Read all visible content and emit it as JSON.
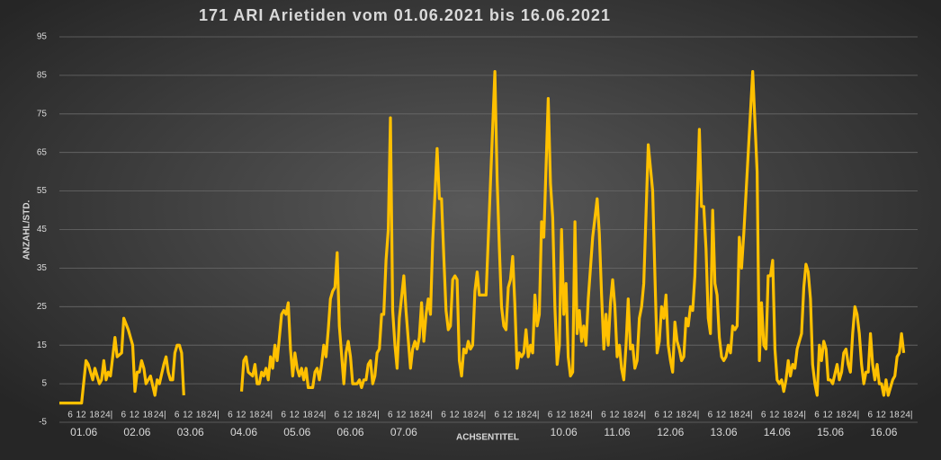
{
  "chart_data": {
    "type": "line",
    "title": "171 ARI Arietiden vom 01.06.2021 bis 16.06.2021",
    "ylabel": "ANZAHL/STD.",
    "xlabel": "ACHSENTITEL",
    "color": "#ffc000",
    "grid": true,
    "xlim": [
      0,
      384
    ],
    "ylim": [
      -5,
      95
    ],
    "yticks": [
      -5,
      5,
      15,
      25,
      35,
      45,
      55,
      65,
      75,
      85,
      95
    ],
    "xticks": [
      {
        "value": 6,
        "label": "6"
      },
      {
        "value": 12,
        "label": "12"
      },
      {
        "value": 18,
        "label": "18"
      },
      {
        "value": 24,
        "label": "24|"
      },
      {
        "value": 30,
        "label": "6"
      },
      {
        "value": 36,
        "label": "12"
      },
      {
        "value": 42,
        "label": "18"
      },
      {
        "value": 48,
        "label": "24|"
      },
      {
        "value": 54,
        "label": "6"
      },
      {
        "value": 60,
        "label": "12"
      },
      {
        "value": 66,
        "label": "18"
      },
      {
        "value": 72,
        "label": "24|"
      },
      {
        "value": 78,
        "label": "6"
      },
      {
        "value": 84,
        "label": "12"
      },
      {
        "value": 90,
        "label": "18"
      },
      {
        "value": 96,
        "label": "24|"
      },
      {
        "value": 102,
        "label": "6"
      },
      {
        "value": 108,
        "label": "12"
      },
      {
        "value": 114,
        "label": "18"
      },
      {
        "value": 120,
        "label": "24|"
      },
      {
        "value": 126,
        "label": "6"
      },
      {
        "value": 132,
        "label": "12"
      },
      {
        "value": 138,
        "label": "18"
      },
      {
        "value": 144,
        "label": "24|"
      },
      {
        "value": 150,
        "label": "6"
      },
      {
        "value": 156,
        "label": "12"
      },
      {
        "value": 162,
        "label": "18"
      },
      {
        "value": 168,
        "label": "24|"
      },
      {
        "value": 174,
        "label": "6"
      },
      {
        "value": 180,
        "label": "12"
      },
      {
        "value": 186,
        "label": "18"
      },
      {
        "value": 192,
        "label": "24|"
      },
      {
        "value": 198,
        "label": "6"
      },
      {
        "value": 204,
        "label": "12"
      },
      {
        "value": 210,
        "label": "18"
      },
      {
        "value": 216,
        "label": "24|"
      },
      {
        "value": 222,
        "label": "6"
      },
      {
        "value": 228,
        "label": "12"
      },
      {
        "value": 234,
        "label": "18"
      },
      {
        "value": 240,
        "label": "24|"
      },
      {
        "value": 246,
        "label": "6"
      },
      {
        "value": 252,
        "label": "12"
      },
      {
        "value": 258,
        "label": "18"
      },
      {
        "value": 264,
        "label": "24|"
      },
      {
        "value": 270,
        "label": "6"
      },
      {
        "value": 276,
        "label": "12"
      },
      {
        "value": 282,
        "label": "18"
      },
      {
        "value": 288,
        "label": "24|"
      },
      {
        "value": 294,
        "label": "6"
      },
      {
        "value": 300,
        "label": "12"
      },
      {
        "value": 306,
        "label": "18"
      },
      {
        "value": 312,
        "label": "24|"
      },
      {
        "value": 318,
        "label": "6"
      },
      {
        "value": 324,
        "label": "12"
      },
      {
        "value": 330,
        "label": "18"
      },
      {
        "value": 336,
        "label": "24|"
      },
      {
        "value": 342,
        "label": "6"
      },
      {
        "value": 348,
        "label": "12"
      },
      {
        "value": 354,
        "label": "18"
      },
      {
        "value": 360,
        "label": "24|"
      },
      {
        "value": 366,
        "label": "6"
      },
      {
        "value": 372,
        "label": "12"
      },
      {
        "value": 378,
        "label": "18"
      },
      {
        "value": 384,
        "label": "24|"
      }
    ],
    "day_labels": [
      {
        "value": 11,
        "label": "01.06"
      },
      {
        "value": 35,
        "label": "02.06"
      },
      {
        "value": 59,
        "label": "03.06"
      },
      {
        "value": 83,
        "label": "04.06"
      },
      {
        "value": 107,
        "label": "05.06"
      },
      {
        "value": 131,
        "label": "06.06"
      },
      {
        "value": 155,
        "label": "07.06"
      },
      {
        "value": 227,
        "label": "10.06"
      },
      {
        "value": 251,
        "label": "11.06"
      },
      {
        "value": 275,
        "label": "12.06"
      },
      {
        "value": 299,
        "label": "13.06"
      },
      {
        "value": 323,
        "label": "14.06"
      },
      {
        "value": 347,
        "label": "15.06"
      },
      {
        "value": 371,
        "label": "16.06"
      }
    ],
    "x": [
      0,
      10,
      12,
      13,
      15,
      16,
      18,
      19,
      20,
      21,
      22,
      23,
      25,
      26,
      28,
      29,
      31,
      33,
      34,
      35,
      36,
      37,
      38,
      39,
      41,
      43,
      44,
      45,
      47,
      48,
      49,
      50,
      51,
      52,
      53,
      54,
      55,
      56,
      70,
      82,
      83,
      84,
      85,
      87,
      88,
      89,
      90,
      91,
      92,
      93,
      94,
      95,
      96,
      97,
      98,
      100,
      101,
      102,
      103,
      104,
      105,
      106,
      107,
      108,
      109,
      110,
      111,
      112,
      114,
      115,
      116,
      117,
      118,
      119,
      120,
      121,
      122,
      123,
      124,
      125,
      126,
      128,
      129,
      130,
      131,
      132,
      134,
      135,
      136,
      137,
      138,
      139,
      140,
      141,
      142,
      143,
      144,
      145,
      146,
      147,
      148,
      149,
      150,
      151,
      152,
      153,
      155,
      156,
      158,
      159,
      160,
      161,
      162,
      163,
      164,
      165,
      166,
      167,
      168,
      170,
      171,
      172,
      173,
      174,
      175,
      176,
      177,
      178,
      179,
      180,
      181,
      182,
      183,
      184,
      185,
      186,
      187,
      188,
      189,
      190,
      192,
      196,
      197,
      198,
      199,
      200,
      201,
      202,
      203,
      204,
      205,
      206,
      207,
      208,
      209,
      210,
      211,
      212,
      213,
      214,
      215,
      216,
      217,
      218,
      220,
      221,
      222,
      223,
      224,
      225,
      226,
      227,
      228,
      229,
      230,
      231,
      232,
      233,
      234,
      235,
      236,
      237,
      238,
      240,
      242,
      243,
      244,
      245,
      246,
      247,
      248,
      249,
      250,
      251,
      252,
      253,
      254,
      255,
      256,
      257,
      258,
      259,
      260,
      261,
      262,
      263,
      265,
      267,
      268,
      269,
      270,
      271,
      272,
      273,
      274,
      275,
      276,
      277,
      278,
      279,
      280,
      281,
      282,
      283,
      284,
      285,
      286,
      288,
      289,
      290,
      291,
      292,
      293,
      294,
      295,
      296,
      297,
      298,
      299,
      300,
      301,
      302,
      303,
      304,
      305,
      306,
      307,
      308,
      312,
      314,
      315,
      316,
      317,
      318,
      319,
      320,
      321,
      322,
      323,
      324,
      325,
      326,
      327,
      328,
      329,
      330,
      331,
      332,
      333,
      334,
      335,
      336,
      337,
      338,
      339,
      340,
      341,
      342,
      343,
      344,
      345,
      346,
      347,
      348,
      350,
      351,
      352,
      353,
      354,
      355,
      356,
      357,
      358,
      359,
      360,
      361,
      362,
      363,
      364,
      365,
      366,
      367,
      368,
      369,
      370,
      371,
      372,
      373,
      374,
      375,
      376,
      377,
      378,
      379,
      380
    ],
    "values": [
      0,
      0,
      11,
      10,
      6,
      9,
      5,
      6,
      11,
      6,
      8,
      7,
      17,
      12,
      13,
      22,
      19,
      15,
      3,
      8,
      8,
      11,
      9,
      5,
      7,
      2,
      6,
      5,
      10,
      12,
      8,
      6,
      6,
      13,
      15,
      15,
      13,
      2,
      null,
      3,
      11,
      12,
      8,
      7,
      10,
      5,
      5,
      8,
      7,
      9,
      6,
      12,
      9,
      15,
      11,
      23,
      24,
      23,
      26,
      14,
      7,
      13,
      9,
      7,
      9,
      6,
      9,
      4,
      4,
      8,
      9,
      6,
      10,
      15,
      12,
      19,
      27,
      29,
      30,
      39,
      20,
      5,
      13,
      16,
      12,
      5,
      5,
      6,
      4,
      6,
      6,
      10,
      11,
      5,
      7,
      13,
      14,
      23,
      23,
      37,
      45,
      74,
      24,
      15,
      9,
      22,
      33,
      24,
      9,
      14,
      16,
      14,
      17,
      26,
      16,
      23,
      27,
      23,
      42,
      66,
      53,
      53,
      38,
      24,
      19,
      20,
      32,
      33,
      32,
      11,
      7,
      14,
      13,
      16,
      14,
      15,
      29,
      34,
      28,
      28,
      28,
      86,
      58,
      40,
      25,
      20,
      19,
      30,
      32,
      38,
      25,
      9,
      13,
      12,
      13,
      19,
      12,
      15,
      13,
      28,
      20,
      23,
      47,
      43,
      79,
      57,
      48,
      25,
      10,
      15,
      45,
      23,
      31,
      12,
      7,
      8,
      47,
      18,
      24,
      16,
      20,
      15,
      27,
      43,
      53,
      44,
      28,
      14,
      23,
      15,
      26,
      32,
      25,
      12,
      15,
      9,
      6,
      15,
      27,
      14,
      15,
      9,
      11,
      22,
      25,
      31,
      67,
      55,
      33,
      13,
      16,
      25,
      22,
      28,
      15,
      11,
      8,
      21,
      16,
      14,
      11,
      12,
      22,
      20,
      25,
      24,
      33,
      71,
      51,
      51,
      40,
      22,
      18,
      50,
      31,
      28,
      17,
      12,
      11,
      12,
      15,
      13,
      20,
      19,
      20,
      43,
      35,
      44,
      86,
      60,
      11,
      26,
      15,
      14,
      33,
      33,
      37,
      14,
      6,
      5,
      6,
      3,
      6,
      11,
      7,
      10,
      9,
      14,
      16,
      18,
      30,
      36,
      34,
      27,
      10,
      5,
      2,
      15,
      11,
      16,
      14,
      6,
      6,
      5,
      10,
      6,
      8,
      13,
      14,
      10,
      8,
      18,
      25,
      23,
      18,
      10,
      5,
      8,
      8,
      18,
      10,
      6,
      10,
      5,
      5,
      2,
      6,
      2,
      4,
      6,
      7,
      12,
      13,
      18,
      13
    ]
  }
}
